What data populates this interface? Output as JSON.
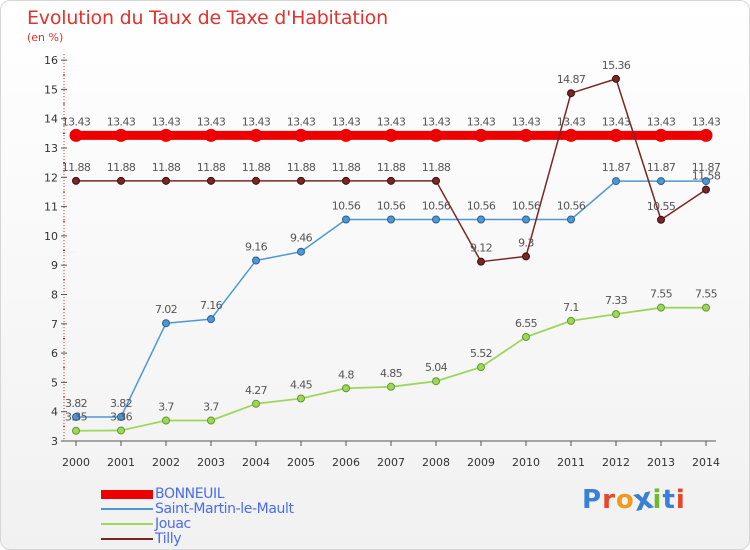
{
  "page": {
    "title": "Evolution du Taux de Taxe d'Habitation",
    "unit": "(en %)"
  },
  "chart_data": {
    "type": "line",
    "title": "Evolution du Taux de Taxe d'Habitation",
    "ylabel": "(en %)",
    "xlabel": "",
    "ylim": [
      3,
      16
    ],
    "yticks": [
      3,
      4,
      5,
      6,
      7,
      8,
      9,
      10,
      11,
      12,
      13,
      14,
      15,
      16
    ],
    "grid": false,
    "legend_position": "bottom-left",
    "x": [
      "2000",
      "2001",
      "2002",
      "2003",
      "2004",
      "2005",
      "2006",
      "2007",
      "2008",
      "2009",
      "2010",
      "2011",
      "2012",
      "2013",
      "2014"
    ],
    "series": [
      {
        "name": "BONNEUIL",
        "color": "#ee0000",
        "values": [
          13.43,
          13.43,
          13.43,
          13.43,
          13.43,
          13.43,
          13.43,
          13.43,
          13.43,
          13.43,
          13.43,
          13.43,
          13.43,
          13.43,
          13.43
        ],
        "labels": [
          "13.43",
          "13.43",
          "13.43",
          "13.43",
          "13.43",
          "13.43",
          "13.43",
          "13.43",
          "13.43",
          "13.43",
          "13.43",
          "13.43",
          "13.43",
          "13.43",
          "13.43"
        ]
      },
      {
        "name": "Saint-Martin-le-Mault",
        "color": "#4f97d4",
        "values": [
          3.82,
          3.82,
          7.02,
          7.16,
          9.16,
          9.46,
          10.56,
          10.56,
          10.56,
          10.56,
          10.56,
          10.56,
          11.87,
          11.87,
          11.87
        ],
        "labels": [
          "3.82",
          "3.82",
          "7.02",
          "7.16",
          "9.16",
          "9.46",
          "10.56",
          "10.56",
          "10.56",
          "10.56",
          "10.56",
          "10.56",
          "11.87",
          "11.87",
          "11.87"
        ]
      },
      {
        "name": "Jouac",
        "color": "#9ed65c",
        "values": [
          3.35,
          3.36,
          3.7,
          3.7,
          4.27,
          4.45,
          4.8,
          4.85,
          5.04,
          5.52,
          6.55,
          7.1,
          7.33,
          7.55,
          7.55
        ],
        "labels": [
          "3.35",
          "3.36",
          "3.7",
          "3.7",
          "4.27",
          "4.45",
          "4.8",
          "4.85",
          "5.04",
          "5.52",
          "6.55",
          "7.1",
          "7.33",
          "7.55",
          "7.55"
        ]
      },
      {
        "name": "Tilly",
        "color": "#7a2626",
        "values": [
          11.88,
          11.88,
          11.88,
          11.88,
          11.88,
          11.88,
          11.88,
          11.88,
          11.88,
          9.12,
          9.3,
          14.87,
          15.36,
          10.55,
          11.58
        ],
        "labels": [
          "11.88",
          "11.88",
          "11.88",
          "11.88",
          "11.88",
          "11.88",
          "11.88",
          "11.88",
          "11.88",
          "9.12",
          "9.3",
          "14.87",
          "15.36",
          "10.55",
          "11.58"
        ]
      }
    ]
  },
  "logo": {
    "text": "Proxiti",
    "colors": [
      "#3b7fd6",
      "#e8462a",
      "#f29a1d",
      "#3b7fd6",
      "#6cbb2f",
      "#3b7fd6",
      "#e8462a"
    ]
  }
}
